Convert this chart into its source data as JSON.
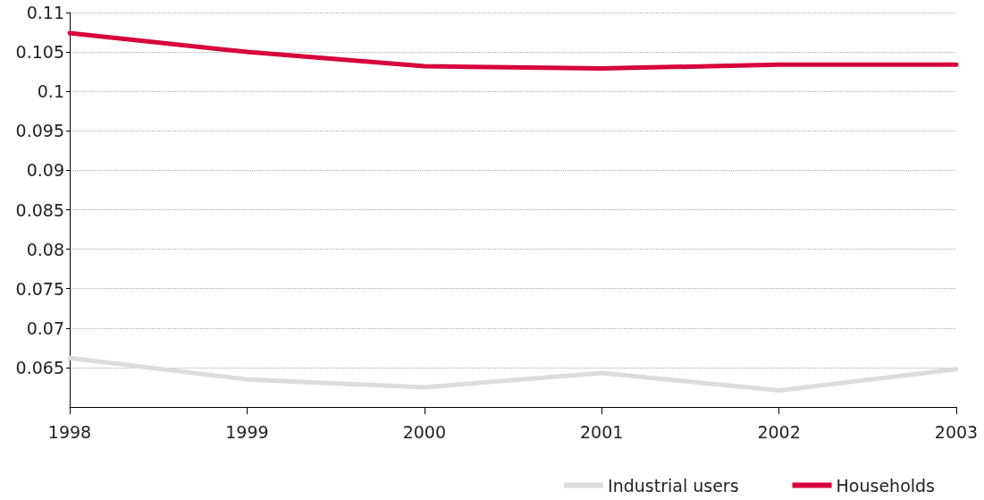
{
  "chart_data": {
    "type": "line",
    "x": [
      1998,
      1999,
      2000,
      2001,
      2002,
      2003
    ],
    "series": [
      {
        "name": "Industrial users",
        "color": "#dcdcdc",
        "values": [
          0.0662,
          0.0635,
          0.0625,
          0.0643,
          0.0621,
          0.0648
        ]
      },
      {
        "name": "Households",
        "color": "#d6003c",
        "values": [
          0.1074,
          0.105,
          0.1032,
          0.1029,
          0.1034,
          0.1034
        ]
      }
    ],
    "xlim": [
      1998,
      2003
    ],
    "xticks": [
      1998,
      1999,
      2000,
      2001,
      2002,
      2003
    ],
    "ylim": [
      0.06,
      0.11
    ],
    "yticks": [
      0.065,
      0.07,
      0.075,
      0.08,
      0.085,
      0.09,
      0.095,
      0.1,
      0.105,
      0.11
    ],
    "grid": "y",
    "legend": "bottom right",
    "marker": "none",
    "line_style": "solid"
  }
}
